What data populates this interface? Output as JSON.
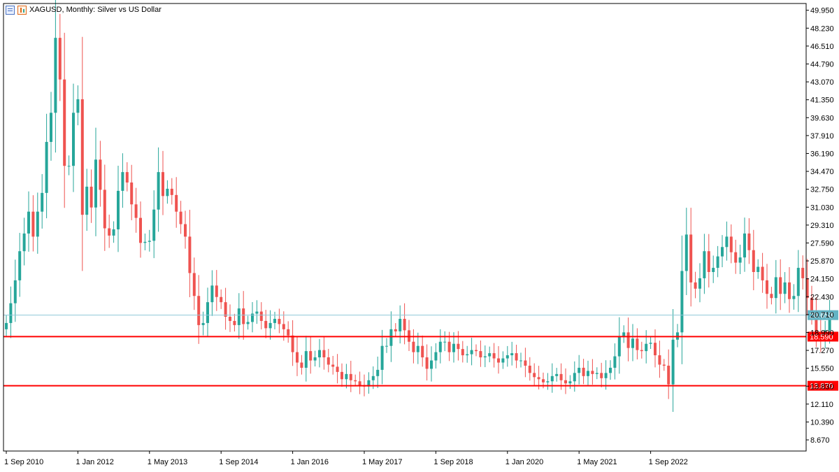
{
  "header": {
    "title": "XAGUSD, Monthly:  Silver vs US Dollar"
  },
  "colors": {
    "bull": "#26a69a",
    "bear": "#ef5350",
    "level_line": "#ff0000",
    "price_line": "#8ec8d8",
    "price_label_bg": "#63b3c4",
    "level_label_bg": "#ff0000"
  },
  "chart_data": {
    "type": "candlestick",
    "title": "XAGUSD, Monthly:  Silver vs US Dollar",
    "ylim": [
      7.6,
      50.6
    ],
    "y_ticks": [
      "49.950",
      "48.230",
      "46.510",
      "44.790",
      "43.070",
      "41.350",
      "39.630",
      "37.910",
      "36.190",
      "34.470",
      "32.750",
      "31.030",
      "29.310",
      "27.590",
      "25.870",
      "24.150",
      "22.430",
      "20.710",
      "18.990",
      "17.270",
      "15.550",
      "13.830",
      "12.110",
      "10.390",
      "8.670"
    ],
    "y_tick_values": [
      49.95,
      48.23,
      46.51,
      44.79,
      43.07,
      41.35,
      39.63,
      37.91,
      36.19,
      34.47,
      32.75,
      31.03,
      29.31,
      27.59,
      25.87,
      24.15,
      22.43,
      20.71,
      18.99,
      17.27,
      15.55,
      13.83,
      12.11,
      10.39,
      8.67
    ],
    "x_labels": [
      "1 Sep 2010",
      "1 Jan 2012",
      "1 May 2013",
      "1 Sep 2014",
      "1 Jan 2016",
      "1 May 2017",
      "1 Sep 2018",
      "1 Jan 2020",
      "1 May 2021",
      "1 Sep 2022"
    ],
    "x_label_index": [
      0,
      16,
      32,
      48,
      64,
      80,
      96,
      112,
      128,
      144
    ],
    "current_price": {
      "value": 20.658,
      "label": "20.658"
    },
    "levels": [
      {
        "value": 18.59,
        "label": "18.590"
      },
      {
        "value": 13.87,
        "label": "13.870"
      }
    ],
    "closes": [
      19.9,
      21.8,
      24.0,
      26.8,
      28.5,
      30.6,
      28.2,
      30.6,
      32.4,
      37.3,
      40.1,
      47.3,
      43.3,
      35.0,
      35.0,
      40.1,
      41.4,
      30.3,
      33.0,
      31.0,
      35.6,
      32.7,
      29.0,
      28.3,
      28.9,
      32.6,
      34.4,
      33.4,
      31.3,
      30.0,
      27.6,
      27.7,
      27.8,
      30.8,
      34.4,
      32.1,
      32.8,
      32.2,
      30.6,
      29.4,
      28.2,
      24.7,
      22.5,
      19.7,
      19.9,
      21.9,
      23.5,
      22.4,
      21.9,
      20.5,
      20.1,
      19.7,
      21.3,
      19.8,
      20.0,
      20.8,
      21.0,
      20.1,
      19.4,
      19.9,
      20.3,
      19.8,
      19.3,
      18.7,
      17.1,
      16.1,
      15.6,
      17.2,
      16.3,
      16.6,
      17.3,
      16.6,
      15.9,
      15.7,
      15.2,
      14.5,
      15.0,
      14.4,
      14.3,
      13.9,
      13.8,
      14.4,
      14.8,
      15.4,
      17.7,
      17.7,
      19.3,
      19.1,
      20.3,
      19.2,
      18.1,
      17.1,
      17.7,
      16.6,
      15.5,
      16.3,
      17.1,
      18.1,
      18.1,
      17.1,
      17.9,
      17.4,
      16.8,
      16.9,
      17.3,
      17.2,
      16.6,
      16.7,
      17.0,
      16.5,
      16.1,
      16.5,
      16.8,
      17.0,
      16.3,
      16.3,
      15.8,
      15.1,
      14.7,
      14.5,
      14.2,
      14.3,
      14.8,
      15.0,
      14.4,
      14.1,
      14.3,
      15.1,
      15.6,
      14.8,
      15.3,
      15.0,
      15.1,
      14.6,
      15.1,
      15.6,
      16.7,
      18.6,
      19.0,
      17.5,
      18.4,
      17.3,
      17.2,
      17.9,
      18.0,
      16.8,
      15.9,
      15.8,
      14.0,
      18.3,
      19.0,
      24.9,
      28.4,
      23.8,
      23.2,
      24.2,
      26.8,
      24.8,
      25.2,
      26.3,
      27.2,
      28.2,
      26.7,
      25.7,
      26.2,
      28.5,
      26.9,
      24.8,
      25.3,
      24.0,
      22.7,
      22.3,
      24.3,
      22.7,
      23.8,
      22.2,
      22.5,
      25.2,
      24.2,
      22.3,
      20.8,
      19.0,
      18.3,
      19.2,
      20.7
    ],
    "opens": [
      19.3,
      19.9,
      21.8,
      24.0,
      26.8,
      28.5,
      30.6,
      28.2,
      30.6,
      32.4,
      37.3,
      40.1,
      47.3,
      43.3,
      35.0,
      35.0,
      40.1,
      41.4,
      30.3,
      33.0,
      31.0,
      35.6,
      32.7,
      29.0,
      28.3,
      28.9,
      32.6,
      34.4,
      33.4,
      31.3,
      30.0,
      27.6,
      27.7,
      27.8,
      30.8,
      34.4,
      32.1,
      32.8,
      32.2,
      30.6,
      29.4,
      28.2,
      24.7,
      22.5,
      19.7,
      19.9,
      21.9,
      23.5,
      22.4,
      21.9,
      20.5,
      20.1,
      19.7,
      21.3,
      19.8,
      20.0,
      20.8,
      21.0,
      20.1,
      19.4,
      19.9,
      20.3,
      19.8,
      19.3,
      18.7,
      17.1,
      16.1,
      15.6,
      17.2,
      16.3,
      16.6,
      17.3,
      16.6,
      15.9,
      15.7,
      15.2,
      14.5,
      15.0,
      14.4,
      14.3,
      13.9,
      13.8,
      14.4,
      14.8,
      15.4,
      17.7,
      17.7,
      19.3,
      19.1,
      20.3,
      19.2,
      18.1,
      17.1,
      17.7,
      16.6,
      15.5,
      16.3,
      17.1,
      18.1,
      18.1,
      17.1,
      17.9,
      17.4,
      16.8,
      16.9,
      17.3,
      17.2,
      16.6,
      16.7,
      17.0,
      16.5,
      16.1,
      16.5,
      16.8,
      17.0,
      16.3,
      16.3,
      15.8,
      15.1,
      14.7,
      14.5,
      14.2,
      14.3,
      14.8,
      15.0,
      14.4,
      14.1,
      14.3,
      15.1,
      15.6,
      14.8,
      15.3,
      15.0,
      15.1,
      14.6,
      15.1,
      15.6,
      16.7,
      18.6,
      19.0,
      17.5,
      18.4,
      17.3,
      17.2,
      17.9,
      18.0,
      16.8,
      15.9,
      15.8,
      14.0,
      18.3,
      19.0,
      24.9,
      28.4,
      23.8,
      23.2,
      24.2,
      26.8,
      24.8,
      25.2,
      26.3,
      27.2,
      28.2,
      26.7,
      25.7,
      26.2,
      28.5,
      26.9,
      24.8,
      25.3,
      24.0,
      22.7,
      22.3,
      24.3,
      22.7,
      23.8,
      22.2,
      22.5,
      25.2,
      24.2,
      22.3,
      20.8,
      19.0,
      18.3,
      19.2
    ]
  }
}
